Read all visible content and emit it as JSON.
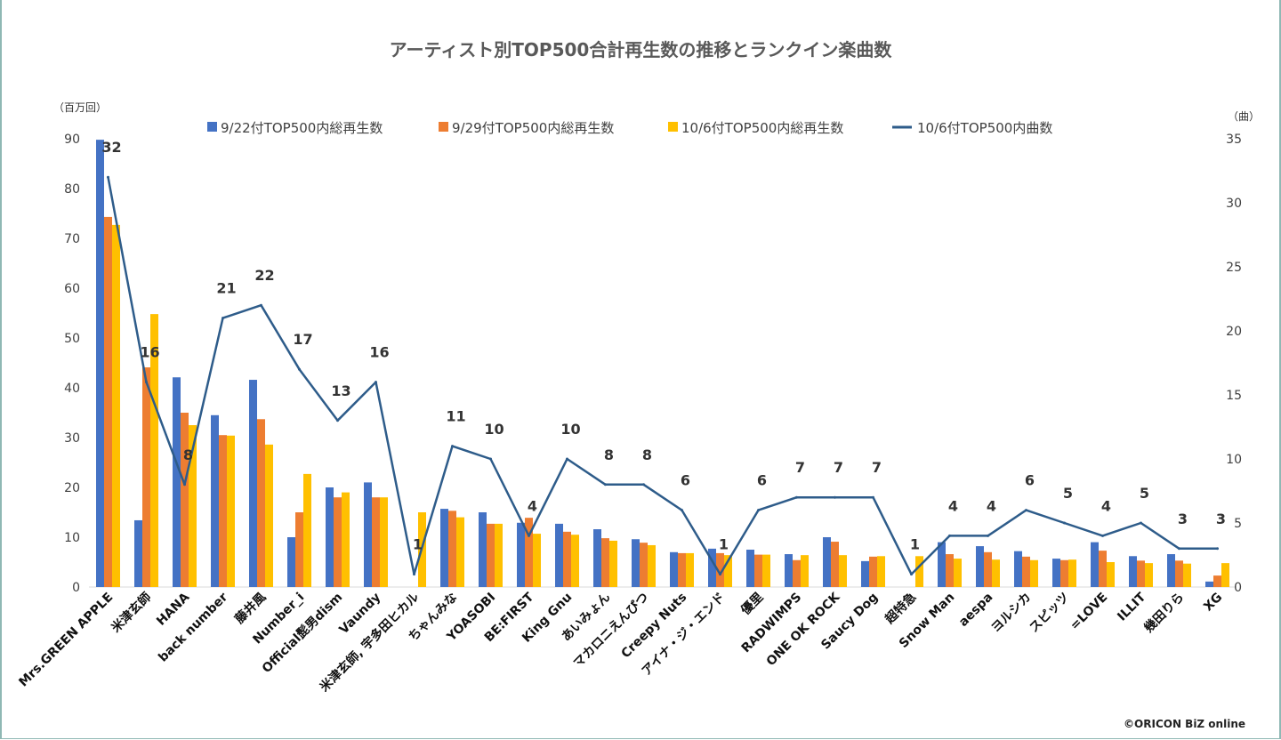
{
  "chart_data": {
    "type": "bar+line",
    "title": "アーティスト別TOP500合計再生数の推移とランクイン楽曲数",
    "ylabel_left": "（百万回）",
    "ylabel_right": "（曲）",
    "ylim_left": [
      0,
      90
    ],
    "yticks_left": [
      0,
      10,
      20,
      30,
      40,
      50,
      60,
      70,
      80,
      90
    ],
    "ylim_right": [
      0,
      35
    ],
    "yticks_right": [
      0,
      5,
      10,
      15,
      20,
      25,
      30,
      35
    ],
    "legend_position": "top",
    "grid": false,
    "categories": [
      "Mrs.GREEN APPLE",
      "米津玄師",
      "HANA",
      "back number",
      "藤井風",
      "Number_i",
      "Official髭男dism",
      "Vaundy",
      "米津玄師, 宇多田ヒカル",
      "ちゃんみな",
      "YOASOBI",
      "BE:FIRST",
      "King Gnu",
      "あいみょん",
      "マカロニえんぴつ",
      "Creepy Nuts",
      "アイナ・ジ・エンド",
      "優里",
      "RADWIMPS",
      "ONE OK ROCK",
      "Saucy Dog",
      "超特急",
      "Snow Man",
      "aespa",
      "ヨルシカ",
      "スピッツ",
      "=LOVE",
      "ILLIT",
      "幾田りら",
      "XG"
    ],
    "series": [
      {
        "name": "9/22付TOP500内総再生数",
        "type": "bar",
        "axis": "left",
        "color": "#4472C4",
        "values": [
          89.8,
          13.4,
          42.1,
          34.5,
          41.6,
          10,
          20,
          21,
          0,
          15.7,
          15,
          12.9,
          12.7,
          11.6,
          9.6,
          7,
          7.7,
          7.5,
          6.6,
          10,
          5.2,
          0,
          9,
          8.2,
          7.2,
          5.7,
          9,
          6.2,
          6.6,
          1.1
        ]
      },
      {
        "name": "9/29付TOP500内総再生数",
        "type": "bar",
        "axis": "left",
        "color": "#ED7D31",
        "values": [
          74.3,
          44.1,
          35,
          30.5,
          33.7,
          15,
          18,
          18,
          0,
          15.3,
          12.7,
          13.9,
          11.1,
          9.8,
          8.9,
          6.8,
          6.8,
          6.5,
          5.4,
          9.1,
          6.1,
          0,
          6.6,
          7,
          6.1,
          5.4,
          7.3,
          5.3,
          5.3,
          2.3
        ]
      },
      {
        "name": "10/6付TOP500内総再生数",
        "type": "bar",
        "axis": "left",
        "color": "#FFC000",
        "values": [
          72.7,
          54.8,
          32.5,
          30.4,
          28.6,
          22.7,
          19,
          18,
          15,
          14,
          12.7,
          10.7,
          10.5,
          9.3,
          8.4,
          6.8,
          6.4,
          6.5,
          6.4,
          6.4,
          6.2,
          6.2,
          5.7,
          5.5,
          5.4,
          5.5,
          5,
          4.8,
          4.7,
          4.8
        ]
      },
      {
        "name": "10/6付TOP500内曲数",
        "type": "line",
        "axis": "right",
        "color": "#2E5C8A",
        "values": [
          32,
          16,
          8,
          21,
          22,
          17,
          13,
          16,
          1,
          11,
          10,
          4,
          10,
          8,
          8,
          6,
          1,
          6,
          7,
          7,
          7,
          1,
          4,
          4,
          6,
          5,
          4,
          5,
          3,
          3
        ]
      }
    ]
  },
  "credit": "©ORICON BiZ online"
}
